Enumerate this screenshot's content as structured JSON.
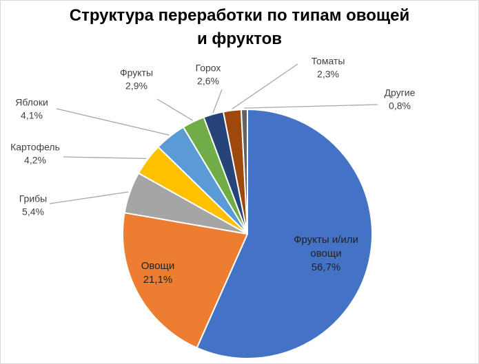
{
  "chart_data": {
    "type": "pie",
    "title": "Структура переработки по типам овощей и фруктов",
    "title_lines": [
      "Структура переработки по типам овощей",
      "и фруктов"
    ],
    "slices": [
      {
        "name": "Фрукты и/или овощи",
        "label_lines": [
          "Фрукты и/или",
          "овощи"
        ],
        "value": 56.7,
        "value_label": "56,7%",
        "color": "#4472c4"
      },
      {
        "name": "Овощи",
        "label_lines": [
          "Овощи"
        ],
        "value": 21.1,
        "value_label": "21,1%",
        "color": "#ed7d31"
      },
      {
        "name": "Грибы",
        "label_lines": [
          "Грибы"
        ],
        "value": 5.4,
        "value_label": "5,4%",
        "color": "#a5a5a5"
      },
      {
        "name": "Картофель",
        "label_lines": [
          "Картофель"
        ],
        "value": 4.2,
        "value_label": "4,2%",
        "color": "#ffc000"
      },
      {
        "name": "Яблоки",
        "label_lines": [
          "Яблоки"
        ],
        "value": 4.1,
        "value_label": "4,1%",
        "color": "#5b9bd5"
      },
      {
        "name": "Фрукты",
        "label_lines": [
          "Фрукты"
        ],
        "value": 2.9,
        "value_label": "2,9%",
        "color": "#70ad47"
      },
      {
        "name": "Горох",
        "label_lines": [
          "Горох"
        ],
        "value": 2.6,
        "value_label": "2,6%",
        "color": "#264478"
      },
      {
        "name": "Томаты",
        "label_lines": [
          "Томаты"
        ],
        "value": 2.3,
        "value_label": "2,3%",
        "color": "#9e480e"
      },
      {
        "name": "Другие",
        "label_lines": [
          "Другие"
        ],
        "value": 0.8,
        "value_label": "0,8%",
        "color": "#636363"
      }
    ],
    "legend": "none",
    "start_angle": "12 o'clock, clockwise"
  }
}
